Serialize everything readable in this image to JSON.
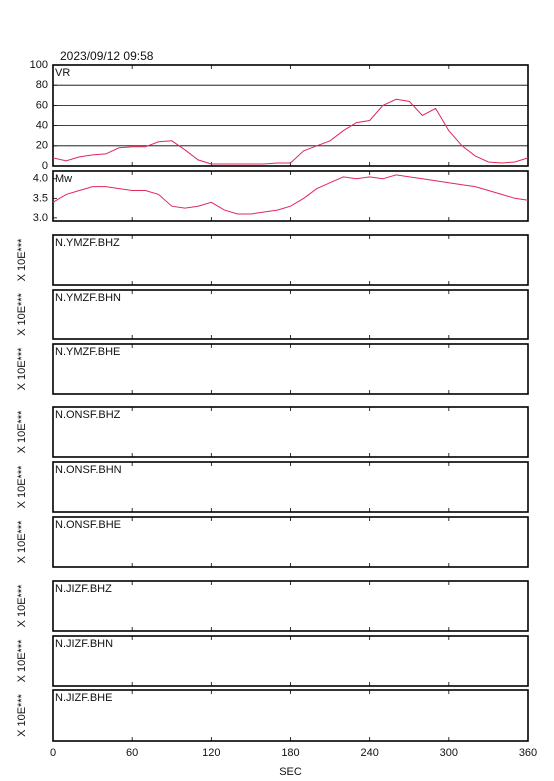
{
  "chart_data": [
    {
      "type": "line",
      "title": "2023/09/12 09:58",
      "label": "VR",
      "color": "#e0285a",
      "x": [
        0,
        10,
        20,
        30,
        40,
        50,
        60,
        70,
        80,
        90,
        100,
        110,
        120,
        130,
        140,
        150,
        160,
        170,
        180,
        190,
        200,
        210,
        220,
        230,
        240,
        250,
        260,
        270,
        280,
        290,
        300,
        310,
        320,
        330,
        340,
        350,
        360
      ],
      "values": [
        8,
        5,
        9,
        11,
        12,
        18,
        19,
        19,
        24,
        25,
        16,
        6,
        2,
        2,
        2,
        2,
        2,
        3,
        3,
        15,
        20,
        25,
        35,
        43,
        45,
        60,
        66,
        64,
        50,
        57,
        35,
        20,
        10,
        4,
        3,
        4,
        8
      ],
      "ylim": [
        0,
        100
      ],
      "yticks": [
        0,
        20,
        40,
        60,
        80,
        100
      ],
      "grid": true
    },
    {
      "type": "line",
      "label": "Mw",
      "color": "#e0285a",
      "x": [
        0,
        10,
        20,
        30,
        40,
        50,
        60,
        70,
        80,
        90,
        100,
        110,
        120,
        130,
        140,
        150,
        160,
        170,
        180,
        190,
        200,
        210,
        220,
        230,
        240,
        250,
        260,
        270,
        280,
        290,
        300,
        310,
        320,
        330,
        340,
        350,
        360
      ],
      "values": [
        3.4,
        3.6,
        3.7,
        3.8,
        3.8,
        3.75,
        3.7,
        3.7,
        3.6,
        3.3,
        3.25,
        3.3,
        3.4,
        3.2,
        3.1,
        3.1,
        3.15,
        3.2,
        3.3,
        3.5,
        3.75,
        3.9,
        4.05,
        4.0,
        4.05,
        4.0,
        4.1,
        4.05,
        4.0,
        3.95,
        3.9,
        3.85,
        3.8,
        3.7,
        3.6,
        3.5,
        3.45
      ],
      "ylim": [
        2.92,
        4.2
      ],
      "yticks": [
        {
          "value": 3,
          "label": "3.0"
        },
        {
          "value": 3.5,
          "label": "3.5"
        },
        {
          "value": 4,
          "label": "4.0"
        }
      ],
      "grid": false
    },
    {
      "type": "waveform",
      "label": "N.YMZF.BHZ",
      "ylabel": "X 10E***"
    },
    {
      "type": "waveform",
      "label": "N.YMZF.BHN",
      "ylabel": "X 10E***"
    },
    {
      "type": "waveform",
      "label": "N.YMZF.BHE",
      "ylabel": "X 10E***"
    },
    {
      "type": "waveform",
      "label": "N.ONSF.BHZ",
      "ylabel": "X 10E***"
    },
    {
      "type": "waveform",
      "label": "N.ONSF.BHN",
      "ylabel": "X 10E***"
    },
    {
      "type": "waveform",
      "label": "N.ONSF.BHE",
      "ylabel": "X 10E***"
    },
    {
      "type": "waveform",
      "label": "N.JIZF.BHZ",
      "ylabel": "X 10E***"
    },
    {
      "type": "waveform",
      "label": "N.JIZF.BHN",
      "ylabel": "X 10E***"
    },
    {
      "type": "waveform",
      "label": "N.JIZF.BHE",
      "ylabel": "X 10E***",
      "xlabel": "SEC",
      "xlim": [
        0,
        360
      ],
      "xticks": [
        0,
        60,
        120,
        180,
        240,
        300,
        360
      ]
    }
  ]
}
